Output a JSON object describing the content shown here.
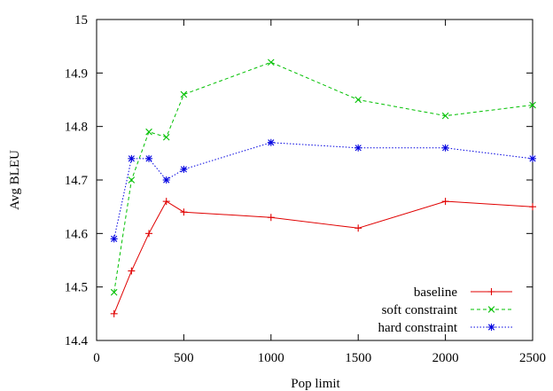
{
  "chart_data": {
    "type": "line",
    "title": "",
    "xlabel": "Pop limit",
    "ylabel": "Avg BLEU",
    "xlim": [
      0,
      2500
    ],
    "ylim": [
      14.4,
      15.0
    ],
    "x_ticks": [
      0,
      500,
      1000,
      1500,
      2000,
      2500
    ],
    "y_ticks": [
      14.4,
      14.5,
      14.6,
      14.7,
      14.8,
      14.9,
      15.0
    ],
    "x_tick_labels": [
      "0",
      "500",
      "1000",
      "1500",
      "2000",
      "2500"
    ],
    "y_tick_labels": [
      "14.4",
      "14.5",
      "14.6",
      "14.7",
      "14.8",
      "14.9",
      "15"
    ],
    "grid": false,
    "legend_position": "bottom-right",
    "series": [
      {
        "name": "baseline",
        "color": "#e00000",
        "dash": "solid",
        "marker": "plus",
        "x": [
          100,
          200,
          300,
          400,
          500,
          1000,
          1500,
          2000,
          2500
        ],
        "y": [
          14.45,
          14.53,
          14.6,
          14.66,
          14.64,
          14.63,
          14.61,
          14.66,
          14.65
        ]
      },
      {
        "name": "soft constraint",
        "color": "#00c000",
        "dash": "dashed",
        "marker": "cross",
        "x": [
          100,
          200,
          300,
          400,
          500,
          1000,
          1500,
          2000,
          2500
        ],
        "y": [
          14.49,
          14.7,
          14.79,
          14.78,
          14.86,
          14.92,
          14.85,
          14.82,
          14.84
        ]
      },
      {
        "name": "hard constraint",
        "color": "#0000e0",
        "dash": "dotted",
        "marker": "star",
        "x": [
          100,
          200,
          300,
          400,
          500,
          1000,
          1500,
          2000,
          2500
        ],
        "y": [
          14.59,
          14.74,
          14.74,
          14.7,
          14.72,
          14.77,
          14.76,
          14.76,
          14.74
        ]
      }
    ]
  }
}
